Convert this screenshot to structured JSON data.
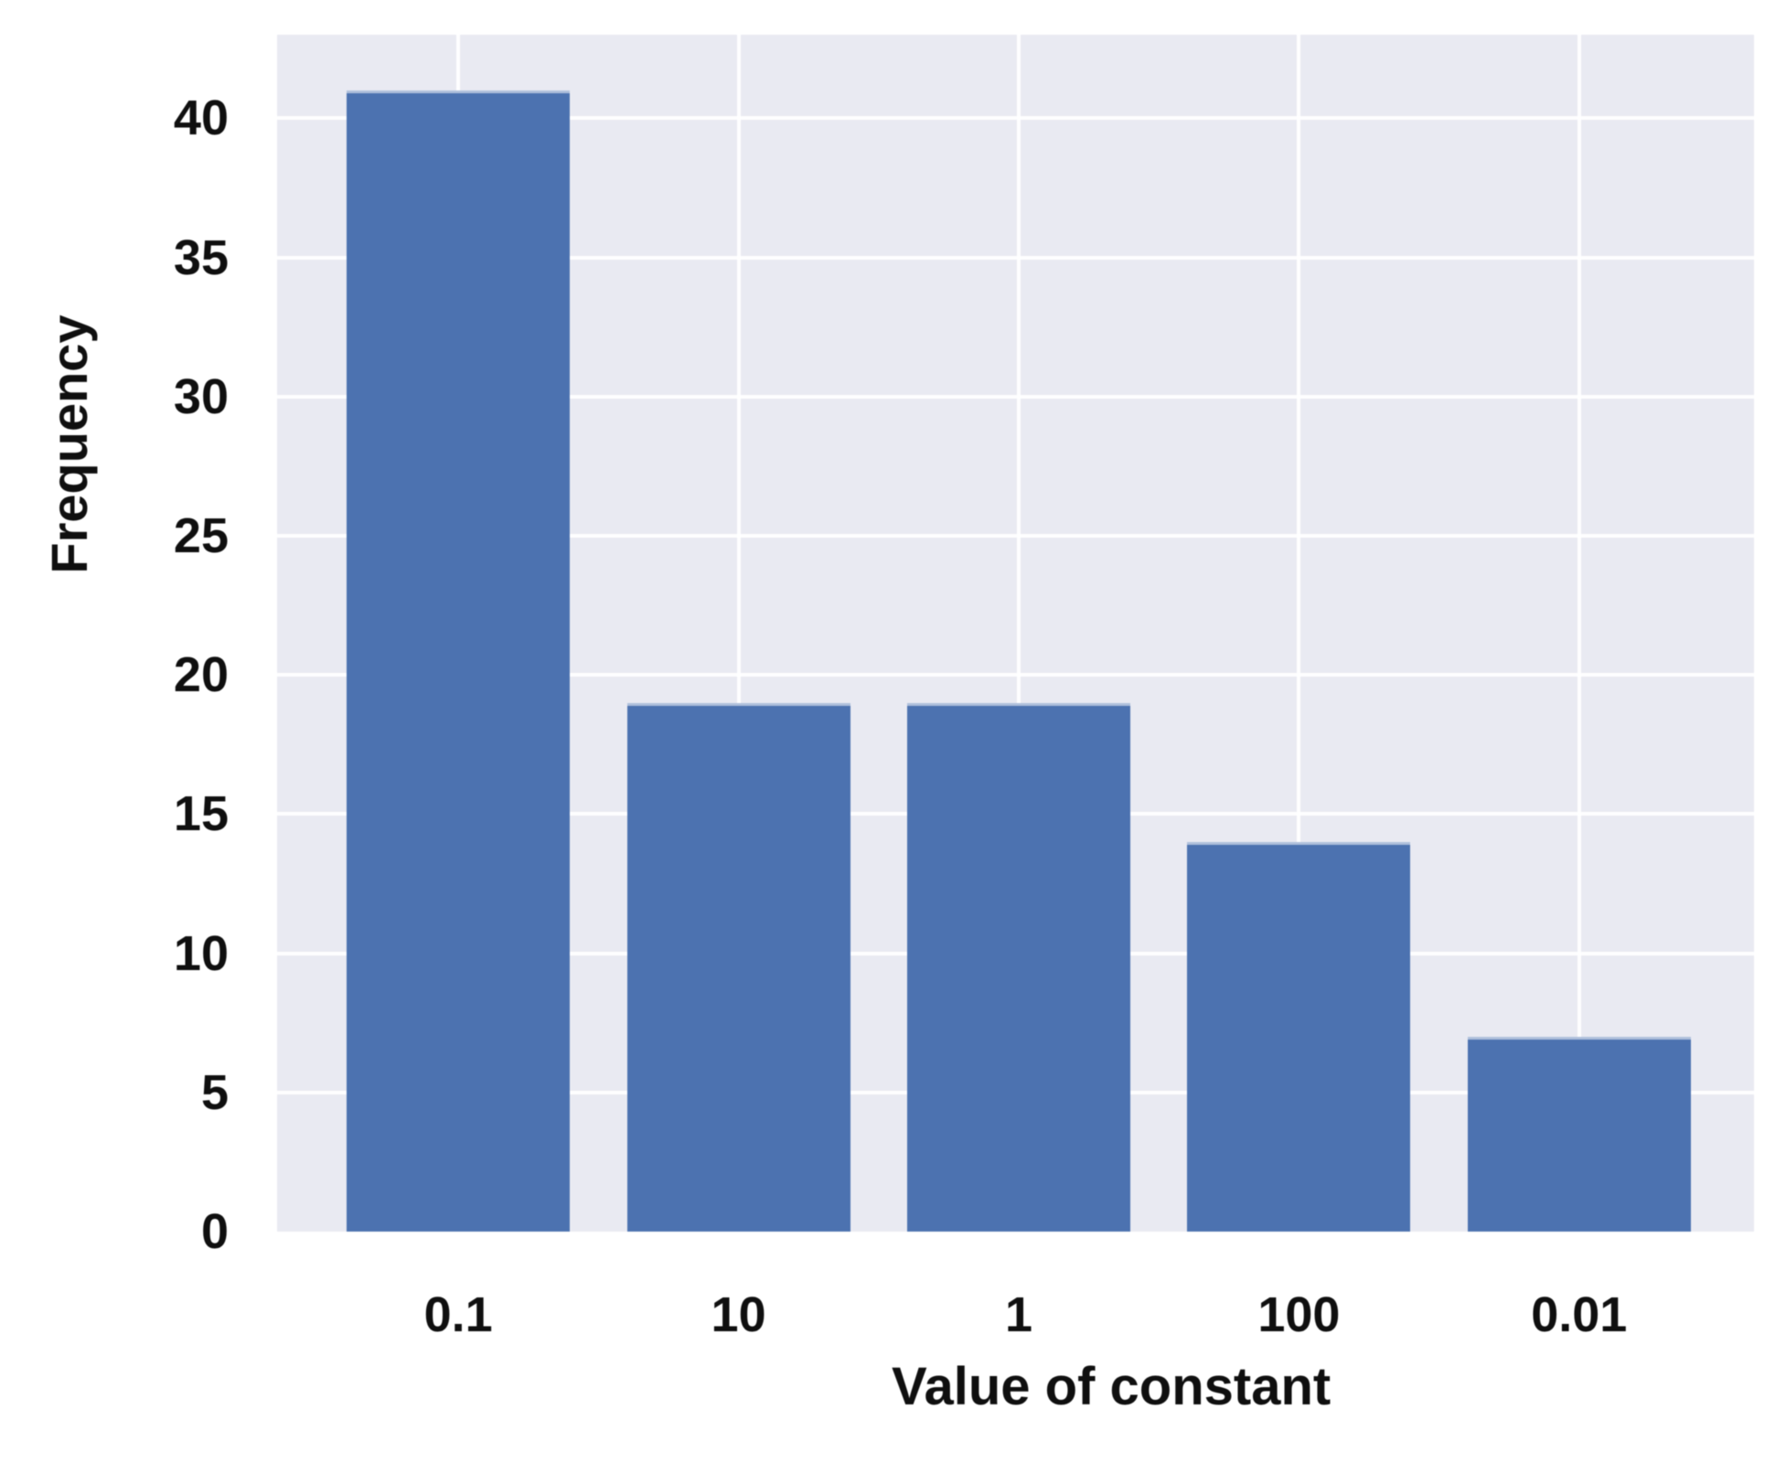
{
  "chart_data": {
    "type": "bar",
    "categories": [
      "0.1",
      "10",
      "1",
      "100",
      "0.01"
    ],
    "values": [
      41,
      19,
      19,
      14,
      7
    ],
    "title": "",
    "xlabel": "Value of constant",
    "ylabel": "Frequency",
    "yticks": [
      0,
      5,
      10,
      15,
      20,
      25,
      30,
      35,
      40
    ],
    "ylim": [
      0,
      43
    ],
    "grid": true,
    "legend": false,
    "style": "seaborn-darkgrid",
    "colors": {
      "bar": "#4C72B0",
      "plot_background": "#E9EAF2",
      "gridline": "rgba(255,255,255,0.95)",
      "text": "#0f0f0f",
      "page_background": "#ffffff"
    }
  }
}
